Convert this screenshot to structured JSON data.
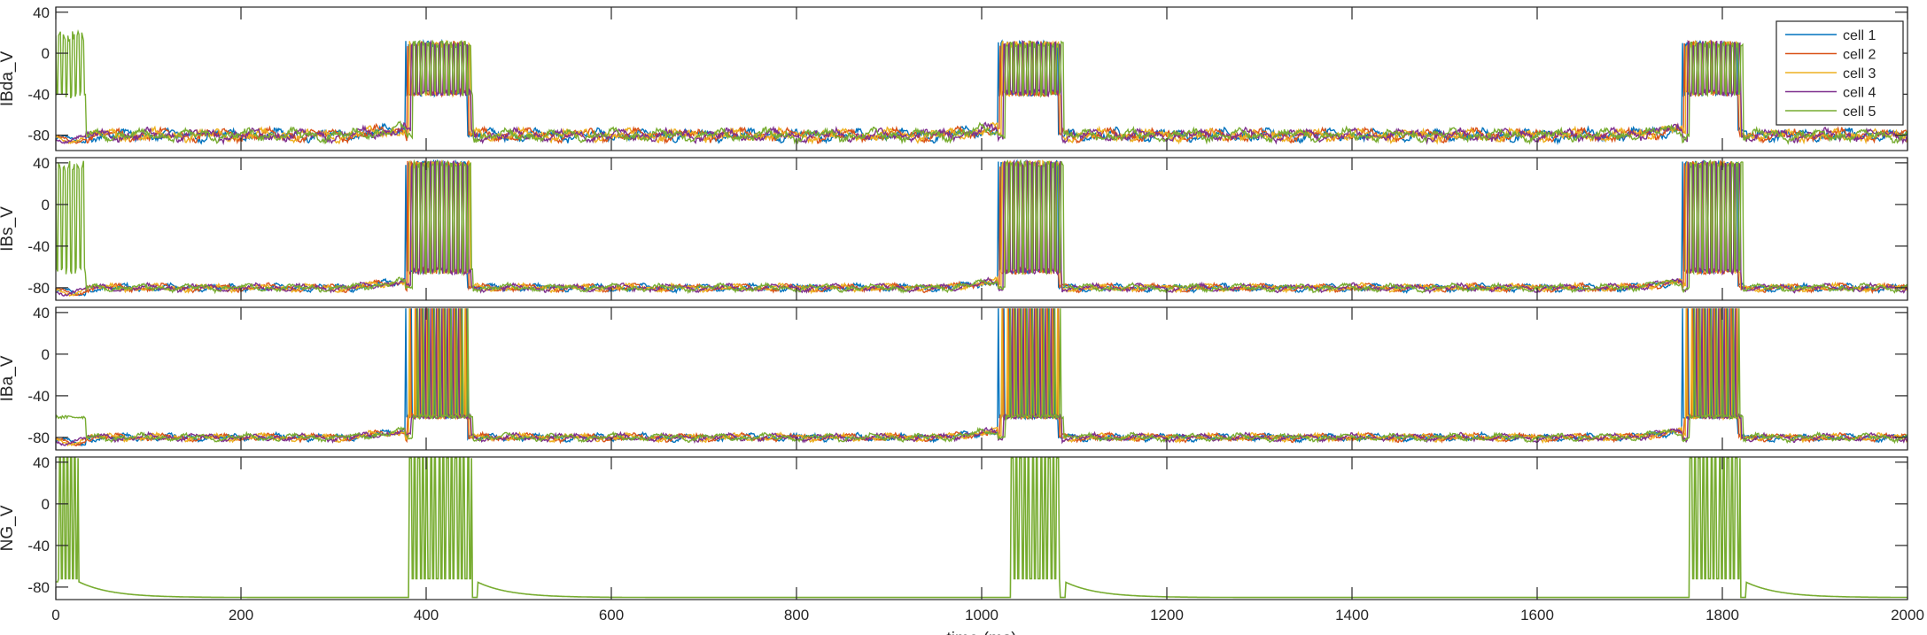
{
  "chart_data": [
    {
      "type": "line",
      "ylabel": "IBda_V",
      "ylim": [
        -95,
        45
      ],
      "yticks": [
        40,
        0,
        -40,
        -80
      ],
      "xlim": [
        0,
        2000
      ],
      "legend": {
        "position": "top-right",
        "entries": [
          "cell 1",
          "cell 2",
          "cell 3",
          "cell 4",
          "cell 5"
        ]
      },
      "series": [
        {
          "name": "cell 1",
          "color": "#0072BD"
        },
        {
          "name": "cell 2",
          "color": "#D95319"
        },
        {
          "name": "cell 3",
          "color": "#EDB120"
        },
        {
          "name": "cell 4",
          "color": "#7E2F8E"
        },
        {
          "name": "cell 5",
          "color": "#77AC30"
        }
      ],
      "bursts": [
        {
          "start": 378,
          "end": 450,
          "plateau": [
            -42,
            12
          ]
        },
        {
          "start": 1018,
          "end": 1088,
          "plateau": [
            -42,
            12
          ]
        },
        {
          "start": 1757,
          "end": 1822,
          "plateau": [
            -42,
            12
          ]
        }
      ],
      "baseline": -80,
      "initial_burst": {
        "start": 2,
        "end": 33,
        "plateau": [
          -45,
          22
        ]
      }
    },
    {
      "type": "line",
      "ylabel": "IBs_V",
      "ylim": [
        -92,
        45
      ],
      "yticks": [
        40,
        0,
        -40,
        -80
      ],
      "xlim": [
        0,
        2000
      ],
      "series": [
        {
          "name": "cell 1",
          "color": "#0072BD"
        },
        {
          "name": "cell 2",
          "color": "#D95319"
        },
        {
          "name": "cell 3",
          "color": "#EDB120"
        },
        {
          "name": "cell 4",
          "color": "#7E2F8E"
        },
        {
          "name": "cell 5",
          "color": "#77AC30"
        }
      ],
      "bursts": [
        {
          "start": 378,
          "end": 450,
          "plateau": [
            -67,
            42
          ]
        },
        {
          "start": 1018,
          "end": 1088,
          "plateau": [
            -67,
            42
          ]
        },
        {
          "start": 1757,
          "end": 1822,
          "plateau": [
            -67,
            42
          ]
        }
      ],
      "baseline": -80,
      "initial_burst": {
        "start": 2,
        "end": 33,
        "plateau": [
          -67,
          42
        ]
      }
    },
    {
      "type": "line",
      "ylabel": "IBa_V",
      "ylim": [
        -92,
        45
      ],
      "yticks": [
        40,
        0,
        -40,
        -80
      ],
      "xlim": [
        0,
        2000
      ],
      "series": [
        {
          "name": "cell 1",
          "color": "#0072BD"
        },
        {
          "name": "cell 2",
          "color": "#D95319"
        },
        {
          "name": "cell 3",
          "color": "#EDB120"
        },
        {
          "name": "cell 4",
          "color": "#7E2F8E"
        },
        {
          "name": "cell 5",
          "color": "#77AC30"
        }
      ],
      "bursts": [
        {
          "start": 378,
          "end": 450,
          "spike_range": [
            -62,
            44
          ]
        },
        {
          "start": 1018,
          "end": 1088,
          "spike_range": [
            -62,
            44
          ]
        },
        {
          "start": 1757,
          "end": 1822,
          "spike_range": [
            -62,
            44
          ]
        }
      ],
      "baseline": -80,
      "initial_hump": {
        "start": 2,
        "end": 33,
        "level": -62
      }
    },
    {
      "type": "line",
      "ylabel": "NG_V",
      "ylim": [
        -92,
        45
      ],
      "yticks": [
        40,
        0,
        -40,
        -80
      ],
      "xlim": [
        0,
        2000
      ],
      "xticks": [
        0,
        200,
        400,
        600,
        800,
        1000,
        1200,
        1400,
        1600,
        1800,
        2000
      ],
      "xlabel": "time (ms)",
      "series": [
        {
          "name": "cell 5",
          "color": "#77AC30"
        }
      ],
      "bursts": [
        {
          "start": 382,
          "end": 455,
          "spike_range": [
            -72,
            44
          ]
        },
        {
          "start": 1032,
          "end": 1090,
          "spike_range": [
            -72,
            44
          ]
        },
        {
          "start": 1765,
          "end": 1825,
          "spike_range": [
            -72,
            44
          ]
        }
      ],
      "rest": -90
    }
  ]
}
